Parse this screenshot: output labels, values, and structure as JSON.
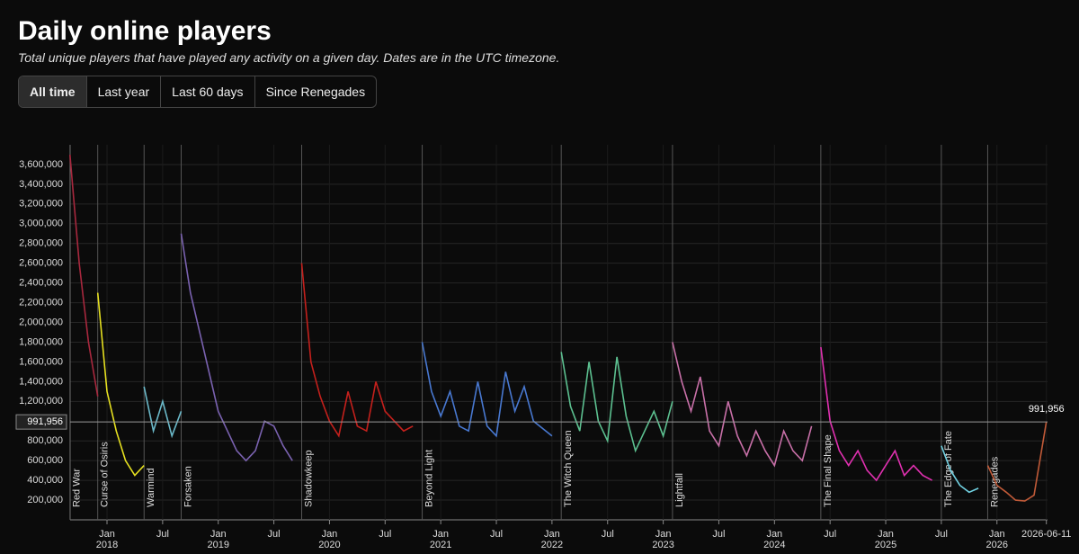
{
  "header": {
    "title": "Daily online players",
    "subtitle": "Total unique players that have played any activity on a given day. Dates are in the UTC timezone.",
    "buttons": [
      "All time",
      "Last year",
      "Last 60 days",
      "Since Renegades"
    ],
    "active_button": 0
  },
  "chart_data": {
    "type": "line",
    "ylim": [
      0,
      3800000
    ],
    "yticks": [
      {
        "value": 200000,
        "label": "200,000"
      },
      {
        "value": 400000,
        "label": "400,000"
      },
      {
        "value": 600000,
        "label": "600,000"
      },
      {
        "value": 800000,
        "label": "800,000"
      },
      {
        "value": 1200000,
        "label": "1,200,000"
      },
      {
        "value": 1400000,
        "label": "1,400,000"
      },
      {
        "value": 1600000,
        "label": "1,600,000"
      },
      {
        "value": 1800000,
        "label": "1,800,000"
      },
      {
        "value": 2000000,
        "label": "2,000,000"
      },
      {
        "value": 2200000,
        "label": "2,200,000"
      },
      {
        "value": 2400000,
        "label": "2,400,000"
      },
      {
        "value": 2600000,
        "label": "2,600,000"
      },
      {
        "value": 2800000,
        "label": "2,800,000"
      },
      {
        "value": 3000000,
        "label": "3,000,000"
      },
      {
        "value": 3200000,
        "label": "3,200,000"
      },
      {
        "value": 3400000,
        "label": "3,400,000"
      },
      {
        "value": 3600000,
        "label": "3,600,000"
      }
    ],
    "xticks": [
      {
        "value": "2018-01",
        "label": "Jan",
        "year": "2018"
      },
      {
        "value": "2018-07",
        "label": "Jul"
      },
      {
        "value": "2019-01",
        "label": "Jan",
        "year": "2019"
      },
      {
        "value": "2019-07",
        "label": "Jul"
      },
      {
        "value": "2020-01",
        "label": "Jan",
        "year": "2020"
      },
      {
        "value": "2020-07",
        "label": "Jul"
      },
      {
        "value": "2021-01",
        "label": "Jan",
        "year": "2021"
      },
      {
        "value": "2021-07",
        "label": "Jul"
      },
      {
        "value": "2022-01",
        "label": "Jan",
        "year": "2022"
      },
      {
        "value": "2022-07",
        "label": "Jul"
      },
      {
        "value": "2023-01",
        "label": "Jan",
        "year": "2023"
      },
      {
        "value": "2023-07",
        "label": "Jul"
      },
      {
        "value": "2024-01",
        "label": "Jan",
        "year": "2024"
      },
      {
        "value": "2024-07",
        "label": "Jul"
      },
      {
        "value": "2025-01",
        "label": "Jan",
        "year": "2025"
      },
      {
        "value": "2025-07",
        "label": "Jul"
      },
      {
        "value": "2026-01",
        "label": "Jan",
        "year": "2026"
      },
      "2026-06-11"
    ],
    "grid": true,
    "current": {
      "value": 991956,
      "label": "991,956"
    },
    "markers": [
      {
        "x": "2017-09",
        "label": "Red War"
      },
      {
        "x": "2017-12",
        "label": "Curse of Osiris"
      },
      {
        "x": "2018-05",
        "label": "Warmind"
      },
      {
        "x": "2018-09",
        "label": "Forsaken"
      },
      {
        "x": "2019-10",
        "label": "Shadowkeep"
      },
      {
        "x": "2020-11",
        "label": "Beyond Light"
      },
      {
        "x": "2022-02",
        "label": "The Witch Queen"
      },
      {
        "x": "2023-02",
        "label": "Lightfall"
      },
      {
        "x": "2024-06",
        "label": "The Final Shape"
      },
      {
        "x": "2025-07",
        "label": "The Edge of Fate"
      },
      {
        "x": "2025-12",
        "label": "Renegades"
      }
    ],
    "series": [
      {
        "name": "Red War",
        "color": "#a8283e",
        "x": [
          "2017-09",
          "2017-10",
          "2017-11",
          "2017-12"
        ],
        "values": [
          3700000,
          2600000,
          1800000,
          1250000
        ]
      },
      {
        "name": "Curse of Osiris",
        "color": "#e6e020",
        "x": [
          "2017-12",
          "2018-01",
          "2018-02",
          "2018-03",
          "2018-04",
          "2018-05"
        ],
        "values": [
          2300000,
          1300000,
          900000,
          600000,
          450000,
          550000
        ]
      },
      {
        "name": "Warmind",
        "color": "#6ab8c8",
        "x": [
          "2018-05",
          "2018-06",
          "2018-07",
          "2018-08",
          "2018-09"
        ],
        "values": [
          1350000,
          900000,
          1200000,
          850000,
          1100000
        ]
      },
      {
        "name": "Forsaken",
        "color": "#7a62b0",
        "x": [
          "2018-09",
          "2018-10",
          "2018-11",
          "2018-12",
          "2019-01",
          "2019-02",
          "2019-03",
          "2019-04",
          "2019-05",
          "2019-06",
          "2019-07",
          "2019-08",
          "2019-09"
        ],
        "values": [
          2900000,
          2300000,
          1900000,
          1500000,
          1100000,
          900000,
          700000,
          600000,
          700000,
          1000000,
          950000,
          750000,
          600000
        ]
      },
      {
        "name": "Shadowkeep",
        "color": "#c4201c",
        "x": [
          "2019-10",
          "2019-11",
          "2019-12",
          "2020-01",
          "2020-02",
          "2020-03",
          "2020-04",
          "2020-05",
          "2020-06",
          "2020-07",
          "2020-08",
          "2020-09",
          "2020-10"
        ],
        "values": [
          2600000,
          1600000,
          1250000,
          1000000,
          850000,
          1300000,
          950000,
          900000,
          1400000,
          1100000,
          1000000,
          900000,
          950000
        ]
      },
      {
        "name": "Beyond Light",
        "color": "#4878d0",
        "x": [
          "2020-11",
          "2020-12",
          "2021-01",
          "2021-02",
          "2021-03",
          "2021-04",
          "2021-05",
          "2021-06",
          "2021-07",
          "2021-08",
          "2021-09",
          "2021-10",
          "2021-11",
          "2022-01"
        ],
        "values": [
          1800000,
          1300000,
          1050000,
          1300000,
          950000,
          900000,
          1400000,
          950000,
          850000,
          1500000,
          1100000,
          1350000,
          1000000,
          850000
        ]
      },
      {
        "name": "The Witch Queen",
        "color": "#5cc090",
        "x": [
          "2022-02",
          "2022-03",
          "2022-04",
          "2022-05",
          "2022-06",
          "2022-07",
          "2022-08",
          "2022-09",
          "2022-10",
          "2022-11",
          "2022-12",
          "2023-01",
          "2023-02"
        ],
        "values": [
          1700000,
          1150000,
          900000,
          1600000,
          1000000,
          800000,
          1650000,
          1050000,
          700000,
          900000,
          1100000,
          850000,
          1200000
        ]
      },
      {
        "name": "Lightfall",
        "color": "#c870a8",
        "x": [
          "2023-02",
          "2023-03",
          "2023-04",
          "2023-05",
          "2023-06",
          "2023-07",
          "2023-08",
          "2023-09",
          "2023-10",
          "2023-11",
          "2023-12",
          "2024-01",
          "2024-02",
          "2024-03",
          "2024-04",
          "2024-05"
        ],
        "values": [
          1800000,
          1400000,
          1100000,
          1450000,
          900000,
          750000,
          1200000,
          850000,
          650000,
          900000,
          700000,
          550000,
          900000,
          700000,
          600000,
          950000
        ]
      },
      {
        "name": "The Final Shape",
        "color": "#e030b0",
        "x": [
          "2024-06",
          "2024-07",
          "2024-08",
          "2024-09",
          "2024-10",
          "2024-11",
          "2024-12",
          "2025-01",
          "2025-02",
          "2025-03",
          "2025-04",
          "2025-05",
          "2025-06"
        ],
        "values": [
          1750000,
          1000000,
          700000,
          550000,
          700000,
          500000,
          400000,
          550000,
          700000,
          450000,
          550000,
          450000,
          400000
        ]
      },
      {
        "name": "The Edge of Fate",
        "color": "#70d0e0",
        "x": [
          "2025-07",
          "2025-08",
          "2025-09",
          "2025-10",
          "2025-11"
        ],
        "values": [
          750000,
          500000,
          350000,
          280000,
          320000
        ]
      },
      {
        "name": "Renegades",
        "color": "#c05a38",
        "x": [
          "2025-12",
          "2026-01",
          "2026-02",
          "2026-03",
          "2026-04",
          "2026-05",
          "2026-06-11"
        ],
        "values": [
          550000,
          350000,
          280000,
          200000,
          190000,
          250000,
          991956
        ]
      }
    ]
  }
}
